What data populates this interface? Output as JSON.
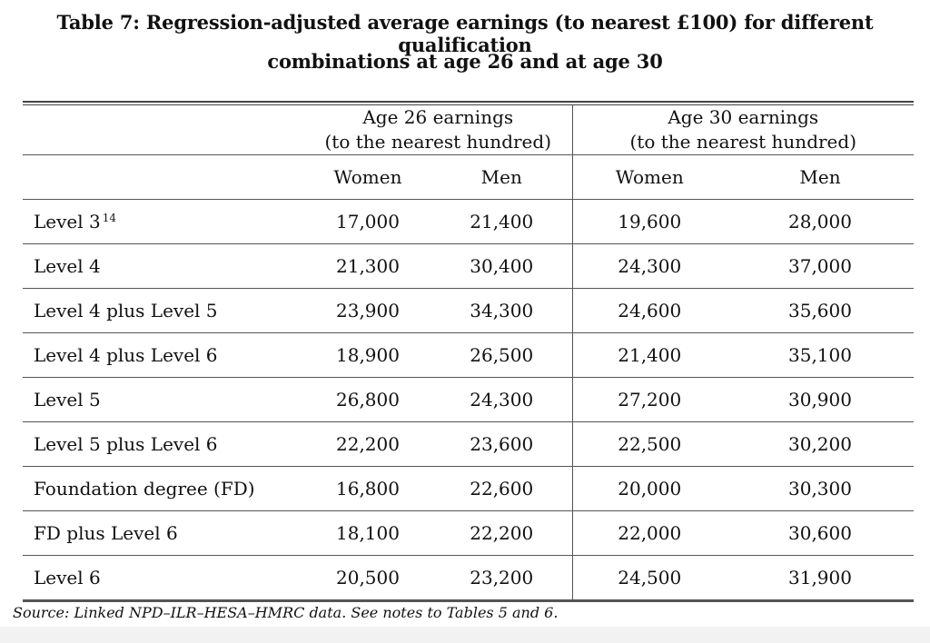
{
  "title_line1": "Table 7: Regression-adjusted average earnings (to nearest £100) for different qualification",
  "title_line2": "combinations at age 26 and at age 30",
  "groups": [
    {
      "line1": "Age 26 earnings",
      "line2": "(to the nearest hundred)"
    },
    {
      "line1": "Age 30 earnings",
      "line2": "(to the nearest hundred)"
    }
  ],
  "subheaders": [
    "Women",
    "Men",
    "Women",
    "Men"
  ],
  "rows": [
    {
      "label": "Level 3",
      "sup": "14",
      "values": [
        "17,000",
        "21,400",
        "19,600",
        "28,000"
      ]
    },
    {
      "label": "Level 4",
      "sup": "",
      "values": [
        "21,300",
        "30,400",
        "24,300",
        "37,000"
      ]
    },
    {
      "label": "Level 4 plus Level 5",
      "sup": "",
      "values": [
        "23,900",
        "34,300",
        "24,600",
        "35,600"
      ]
    },
    {
      "label": "Level 4 plus Level 6",
      "sup": "",
      "values": [
        "18,900",
        "26,500",
        "21,400",
        "35,100"
      ]
    },
    {
      "label": "Level 5",
      "sup": "",
      "values": [
        "26,800",
        "24,300",
        "27,200",
        "30,900"
      ]
    },
    {
      "label": "Level 5 plus Level 6",
      "sup": "",
      "values": [
        "22,200",
        "23,600",
        "22,500",
        "30,200"
      ]
    },
    {
      "label": "Foundation degree (FD)",
      "sup": "",
      "values": [
        "16,800",
        "22,600",
        "20,000",
        "30,300"
      ]
    },
    {
      "label": "FD plus Level 6",
      "sup": "",
      "values": [
        "18,100",
        "22,200",
        "22,000",
        "30,600"
      ]
    },
    {
      "label": "Level 6",
      "sup": "",
      "values": [
        "20,500",
        "23,200",
        "24,500",
        "31,900"
      ]
    }
  ],
  "source": "Source: Linked NPD–ILR–HESA–HMRC data. See notes to Tables 5 and 6."
}
